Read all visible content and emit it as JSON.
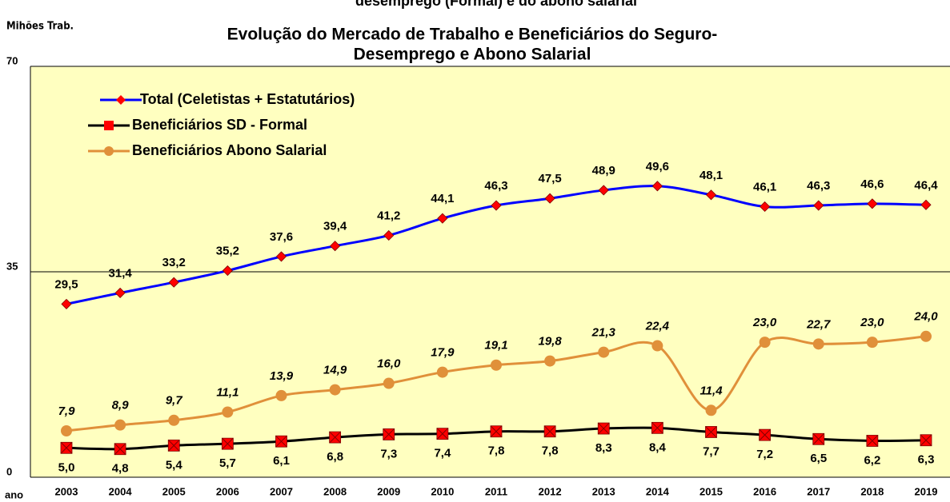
{
  "chart_data": {
    "type": "line",
    "top_caption": "desemprego (Formal) e do abono salarial",
    "title": [
      "Evolução do Mercado de Trabalho e Beneficiários do Seguro-",
      "Desemprego e Abono Salarial"
    ],
    "y_label": "Mihões Trab.",
    "x_label": "ano",
    "categories": [
      "2003",
      "2004",
      "2005",
      "2006",
      "2007",
      "2008",
      "2009",
      "2010",
      "2011",
      "2012",
      "2013",
      "2014",
      "2015",
      "2016",
      "2017",
      "2018",
      "2019"
    ],
    "ylim": [
      0,
      70
    ],
    "yticks": [
      0,
      35,
      70
    ],
    "grid": true,
    "legend": "top-left",
    "series": [
      {
        "name": "Total (Celetistas + Estatutários)",
        "color": "#0000ff",
        "marker_color": "#ff0000",
        "values": [
          29.5,
          31.4,
          33.2,
          35.2,
          37.6,
          39.4,
          41.2,
          44.1,
          46.3,
          47.5,
          48.9,
          49.6,
          48.1,
          46.1,
          46.3,
          46.6,
          46.4
        ],
        "value_labels": [
          "29,5",
          "31,4",
          "33,2",
          "35,2",
          "37,6",
          "39,4",
          "41,2",
          "44,1",
          "46,3",
          "47,5",
          "48,9",
          "49,6",
          "48,1",
          "46,1",
          "46,3",
          "46,6",
          "46,4"
        ]
      },
      {
        "name": "Beneficiários SD - Formal",
        "color": "#000000",
        "marker_color": "#ff0000",
        "values": [
          5.0,
          4.8,
          5.4,
          5.7,
          6.1,
          6.8,
          7.3,
          7.4,
          7.8,
          7.8,
          8.3,
          8.4,
          7.7,
          7.2,
          6.5,
          6.2,
          6.3
        ],
        "value_labels": [
          "5,0",
          "4,8",
          "5,4",
          "5,7",
          "6,1",
          "6,8",
          "7,3",
          "7,4",
          "7,8",
          "7,8",
          "8,3",
          "8,4",
          "7,7",
          "7,2",
          "6,5",
          "6,2",
          "6,3"
        ]
      },
      {
        "name": "Beneficiários Abono Salarial",
        "color": "#e0903a",
        "marker_color": "#e0903a",
        "values": [
          7.9,
          8.9,
          9.7,
          11.1,
          13.9,
          14.9,
          16.0,
          17.9,
          19.1,
          19.8,
          21.3,
          22.4,
          11.4,
          23.0,
          22.7,
          23.0,
          24.0
        ],
        "value_labels": [
          "7,9",
          "8,9",
          "9,7",
          "11,1",
          "13,9",
          "14,9",
          "16,0",
          "17,9",
          "19,1",
          "19,8",
          "21,3",
          "22,4",
          "11,4",
          "23,0",
          "22,7",
          "23,0",
          "24,0"
        ]
      }
    ]
  }
}
